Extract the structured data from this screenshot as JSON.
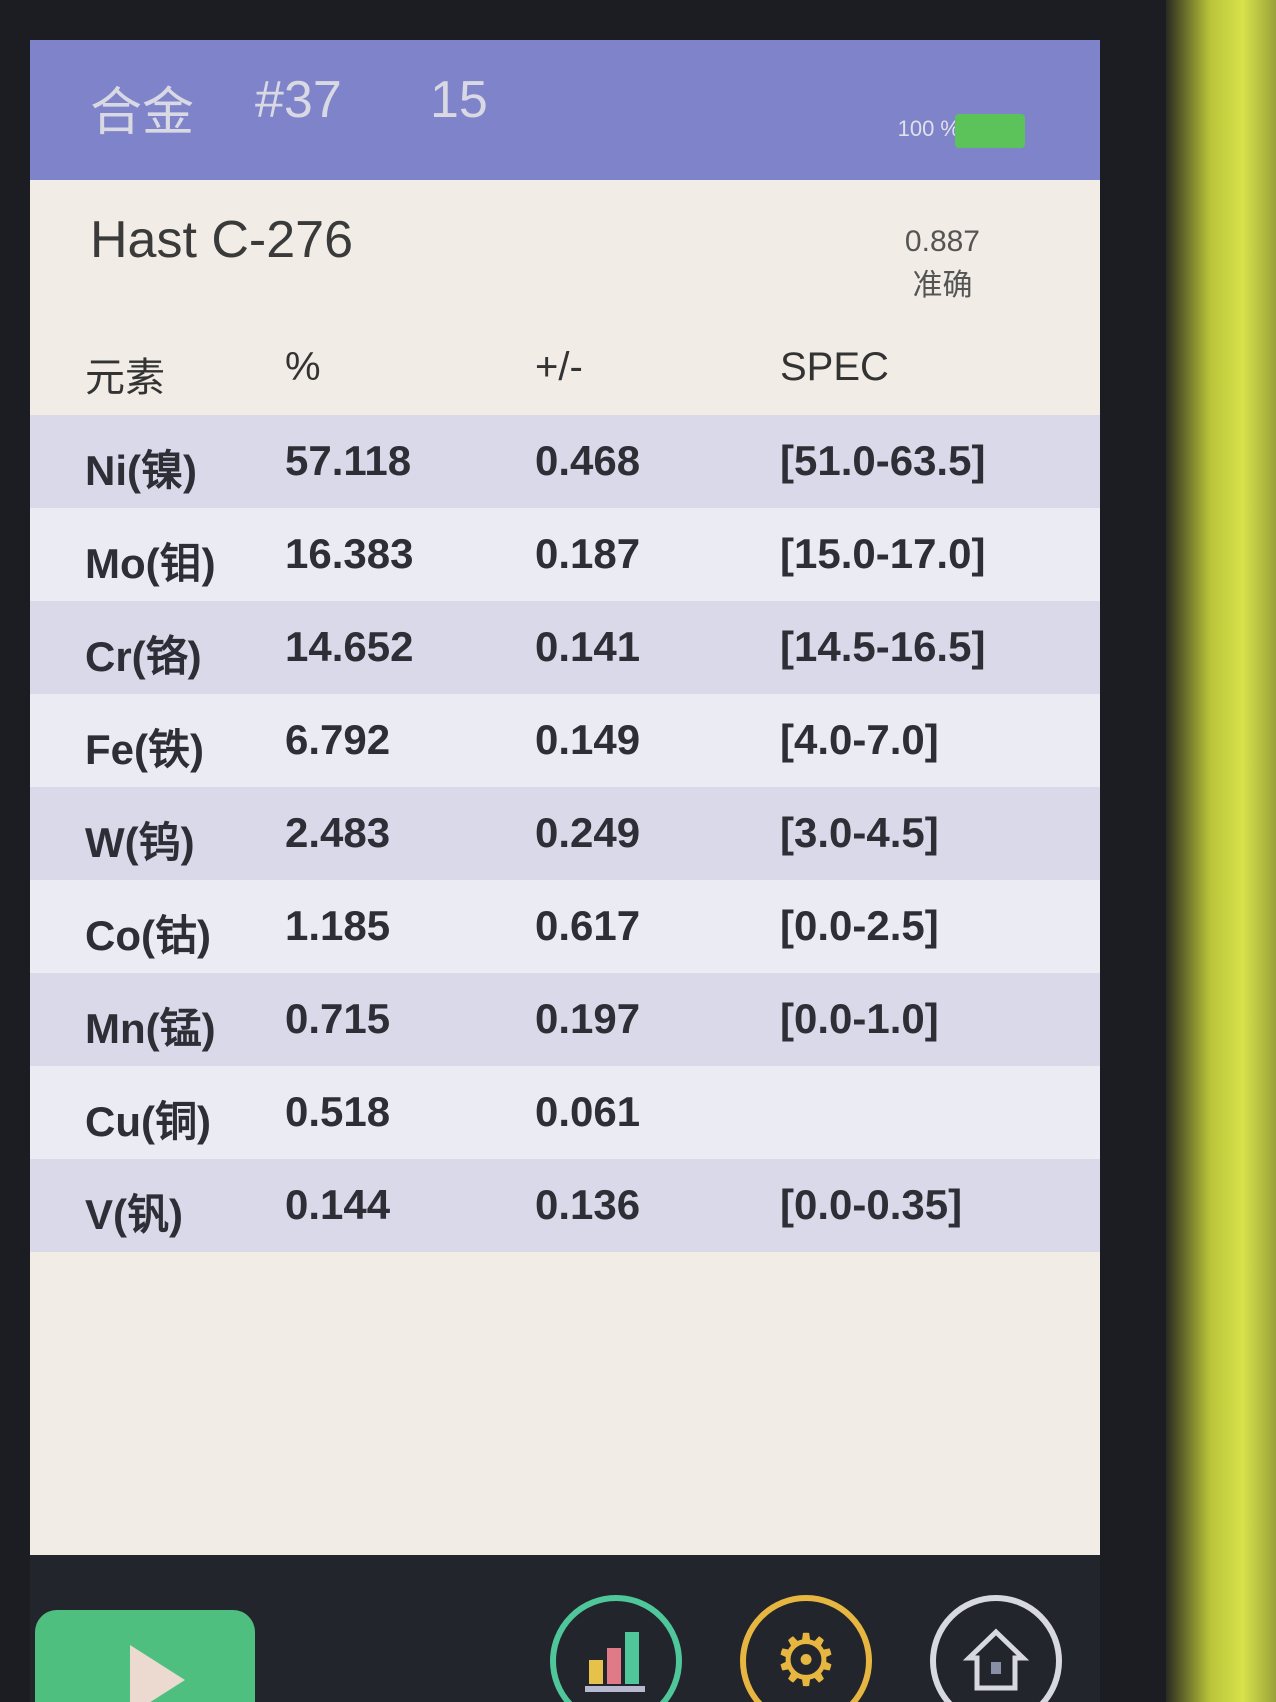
{
  "topbar": {
    "mode": "合金",
    "test_number": "#37",
    "time": "15",
    "battery_label": "100 %",
    "battery_level_percent": 100
  },
  "result": {
    "alloy": "Hast C-276",
    "match_score": "0.887",
    "match_quality": "准确"
  },
  "table": {
    "headers": [
      "元素",
      "%",
      "+/-",
      "SPEC"
    ],
    "rows": [
      [
        "Ni(镍)",
        "57.118",
        "0.468",
        "[51.0-63.5]"
      ],
      [
        "Mo(钼)",
        "16.383",
        "0.187",
        "[15.0-17.0]"
      ],
      [
        "Cr(铬)",
        "14.652",
        "0.141",
        "[14.5-16.5]"
      ],
      [
        "Fe(铁)",
        "6.792",
        "0.149",
        "[4.0-7.0]"
      ],
      [
        "W(钨)",
        "2.483",
        "0.249",
        "[3.0-4.5]"
      ],
      [
        "Co(钴)",
        "1.185",
        "0.617",
        "[0.0-2.5]"
      ],
      [
        "Mn(锰)",
        "0.715",
        "0.197",
        "[0.0-1.0]"
      ],
      [
        "Cu(铜)",
        "0.518",
        "0.061",
        ""
      ],
      [
        "V(钒)",
        "0.144",
        "0.136",
        "[0.0-0.35]"
      ]
    ]
  },
  "bottombar": {
    "icons": [
      "play-icon",
      "bar-chart-icon",
      "gear-icon",
      "home-icon"
    ],
    "colors": {
      "play": "#4fbf7f",
      "chart": "#4fc79a",
      "gear": "#e6b640",
      "home": "#d8d8e0"
    }
  }
}
